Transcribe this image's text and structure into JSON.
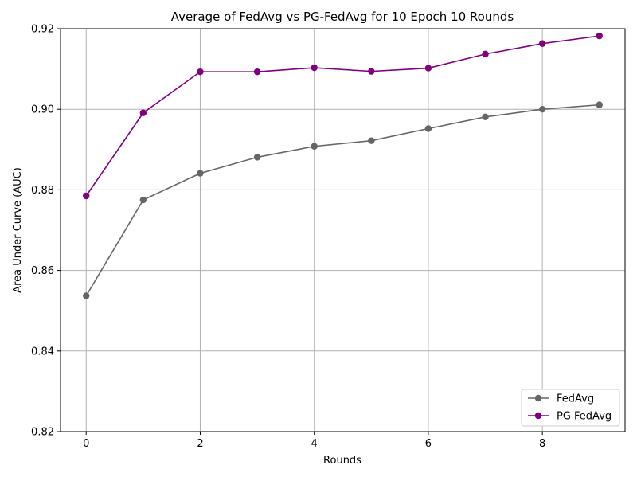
{
  "chart_data": {
    "type": "line",
    "title": "Average of FedAvg vs PG-FedAvg for 10 Epoch 10 Rounds",
    "xlabel": "Rounds",
    "ylabel": "Area Under Curve (AUC)",
    "x": [
      0,
      1,
      2,
      3,
      4,
      5,
      6,
      7,
      8,
      9
    ],
    "xlim": [
      -0.45,
      9.45
    ],
    "ylim": [
      0.82,
      0.92
    ],
    "xticks": [
      0,
      2,
      4,
      6,
      8
    ],
    "xtick_labels": [
      "0",
      "2",
      "4",
      "6",
      "8"
    ],
    "yticks": [
      0.82,
      0.84,
      0.86,
      0.88,
      0.9,
      0.92
    ],
    "ytick_labels": [
      "0.82",
      "0.84",
      "0.86",
      "0.88",
      "0.90",
      "0.92"
    ],
    "grid": true,
    "legend_position": "lower-right",
    "series": [
      {
        "name": "FedAvg",
        "color": "#666666",
        "marker": "circle",
        "values": [
          0.8537,
          0.8775,
          0.8841,
          0.8881,
          0.8908,
          0.8922,
          0.8952,
          0.8981,
          0.9,
          0.9011
        ]
      },
      {
        "name": "PG FedAvg",
        "color": "#800080",
        "marker": "circle",
        "values": [
          0.8785,
          0.8991,
          0.9093,
          0.9093,
          0.9103,
          0.9094,
          0.9102,
          0.9137,
          0.9163,
          0.9182
        ]
      }
    ]
  }
}
